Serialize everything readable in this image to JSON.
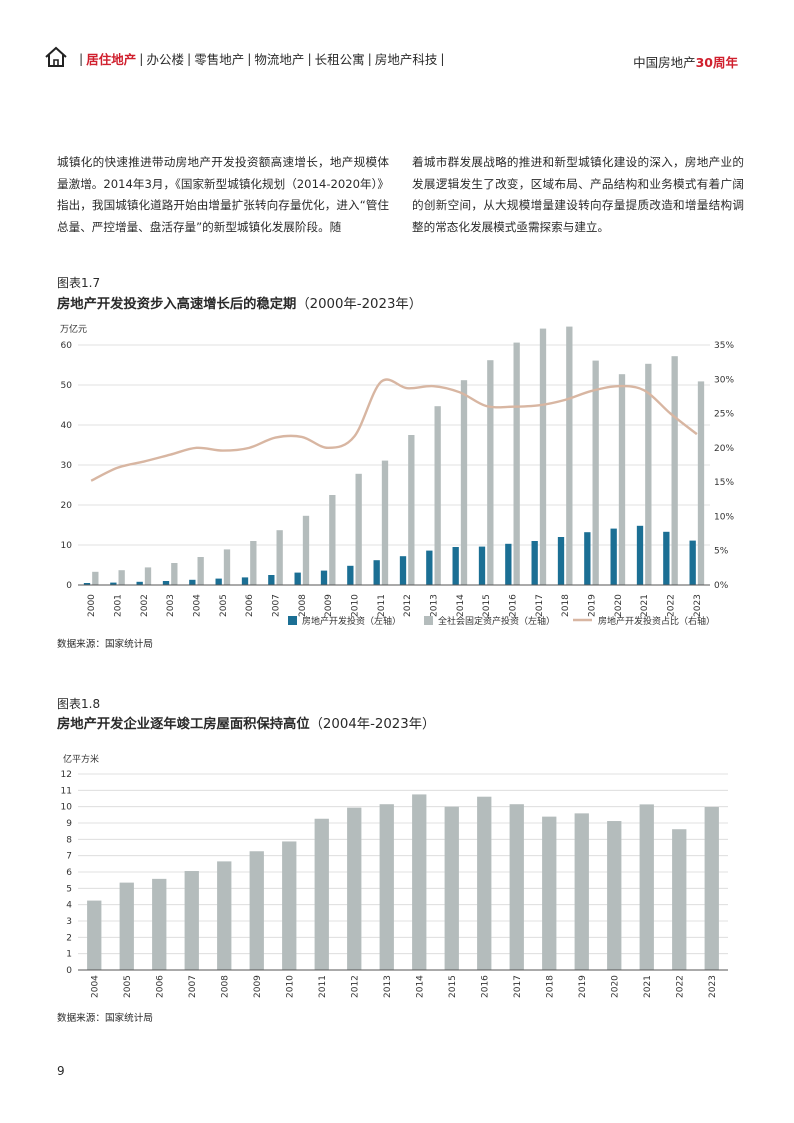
{
  "nav": {
    "items": [
      "居住地产",
      "办公楼",
      "零售地产",
      "物流地产",
      "长租公寓",
      "房地产科技"
    ],
    "brand_prefix": "中国房地产",
    "brand_accent": "30周年"
  },
  "body_text": {
    "left": "城镇化的快速推进带动房地产开发投资额高速增长，地产规模体量激增。2014年3月，《国家新型城镇化规划（2014-2020年）》指出，我国城镇化道路开始由增量扩张转向存量优化，进入“管住总量、严控增量、盘活存量”的新型城镇化发展阶段。随",
    "right": "着城市群发展战略的推进和新型城镇化建设的深入，房地产业的发展逻辑发生了改变，区域布局、产品结构和业务模式有着广阔的创新空间，从大规模增量建设转向存量提质改造和增量结构调整的常态化发展模式亟需探索与建立。"
  },
  "figure1": {
    "label": "图表1.7",
    "title_bold": "房地产开发投资步入高速增长后的稳定期",
    "title_rest": "（2000年-2023年）",
    "source": "数据来源：国家统计局"
  },
  "figure2": {
    "label": "图表1.8",
    "title_bold": "房地产开发企业逐年竣工房屋面积保持高位",
    "title_rest": "（2004年-2023年）",
    "source": "数据来源：国家统计局"
  },
  "chart_data": [
    {
      "type": "bar",
      "unit_left": "万亿元",
      "categories": [
        "2000",
        "2001",
        "2002",
        "2003",
        "2004",
        "2005",
        "2006",
        "2007",
        "2008",
        "2009",
        "2010",
        "2011",
        "2012",
        "2013",
        "2014",
        "2015",
        "2016",
        "2017",
        "2018",
        "2019",
        "2020",
        "2021",
        "2022",
        "2023"
      ],
      "ylim": [
        0,
        60
      ],
      "yticks": [
        "0",
        "10",
        "20",
        "30",
        "40",
        "50",
        "60"
      ],
      "y2lim": [
        0,
        35
      ],
      "y2ticks": [
        "0%",
        "5%",
        "10%",
        "15%",
        "20%",
        "25%",
        "30%",
        "35%"
      ],
      "series": [
        {
          "name": "房地产开发投资（左轴）",
          "axis": "left",
          "kind": "bar",
          "color": "#1b6f94",
          "values": [
            0.5,
            0.6,
            0.8,
            1.0,
            1.3,
            1.6,
            1.9,
            2.5,
            3.1,
            3.6,
            4.8,
            6.2,
            7.2,
            8.6,
            9.5,
            9.6,
            10.3,
            11.0,
            12.0,
            13.2,
            14.1,
            14.8,
            13.3,
            11.1
          ]
        },
        {
          "name": "全社会固定资产投资（左轴）",
          "axis": "left",
          "kind": "bar",
          "color": "#b4bcbc",
          "values": [
            3.3,
            3.7,
            4.4,
            5.5,
            7.0,
            8.9,
            11.0,
            13.7,
            17.3,
            22.5,
            27.8,
            31.1,
            37.5,
            44.7,
            51.2,
            56.2,
            60.6,
            64.1,
            64.6,
            56.1,
            52.7,
            55.3,
            57.2,
            50.9
          ]
        },
        {
          "name": "房地产开发投资占比（右轴）",
          "axis": "right",
          "kind": "line",
          "color": "#d8b6a2",
          "values": [
            15.2,
            17.1,
            18.0,
            19.0,
            20.0,
            19.6,
            20.0,
            21.5,
            21.6,
            20.0,
            21.7,
            29.6,
            28.7,
            29.0,
            28.1,
            26.1,
            26.0,
            26.2,
            27.0,
            28.3,
            29.0,
            28.4,
            25.0,
            22.0
          ]
        }
      ]
    },
    {
      "type": "bar",
      "unit_left": "亿平方米",
      "categories": [
        "2004",
        "2005",
        "2006",
        "2007",
        "2008",
        "2009",
        "2010",
        "2011",
        "2012",
        "2013",
        "2014",
        "2015",
        "2016",
        "2017",
        "2018",
        "2019",
        "2020",
        "2021",
        "2022",
        "2023"
      ],
      "ylim": [
        0,
        12
      ],
      "yticks": [
        "0",
        "1",
        "2",
        "3",
        "4",
        "5",
        "6",
        "7",
        "8",
        "9",
        "10",
        "11",
        "12"
      ],
      "series": [
        {
          "name": "",
          "kind": "bar",
          "color": "#b4bcbc",
          "values": [
            4.25,
            5.35,
            5.58,
            6.06,
            6.65,
            7.27,
            7.87,
            9.26,
            9.94,
            10.15,
            10.75,
            10.0,
            10.61,
            10.15,
            9.39,
            9.59,
            9.12,
            10.14,
            8.62,
            9.98
          ]
        }
      ]
    }
  ]
}
